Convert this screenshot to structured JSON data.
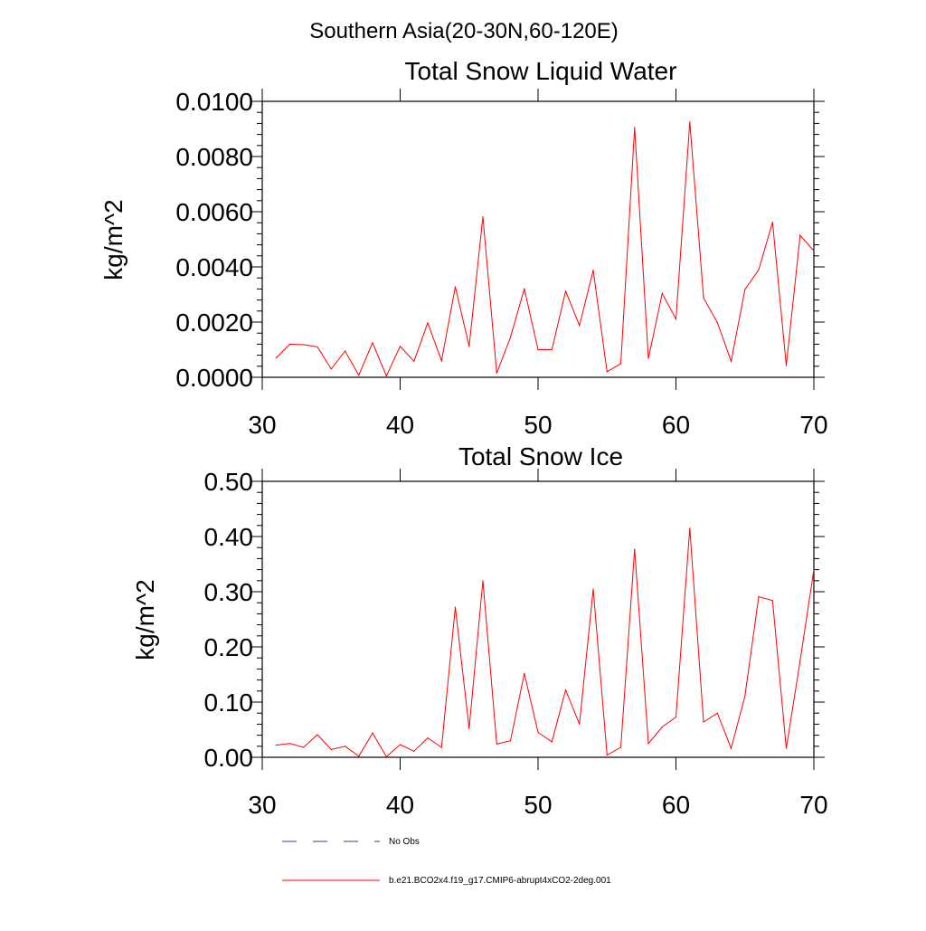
{
  "page_title": "Southern Asia(20-30N,60-120E)",
  "legend": [
    {
      "label": "No Obs",
      "color": "#3a3a8c",
      "dash": true
    },
    {
      "label": "b.e21.BCO2x4.f19_g17.CMIP6-abrupt4xCO2-2deg.001",
      "color": "#ff0000",
      "dash": false
    }
  ],
  "chart_data": [
    {
      "type": "line",
      "title": "Total Snow Liquid Water",
      "xlabel": "",
      "ylabel": "kg/m^2",
      "xlim": [
        30,
        70
      ],
      "ylim": [
        0,
        0.01
      ],
      "xticks": [
        30,
        40,
        50,
        60,
        70
      ],
      "xtick_labels": [
        "30",
        "40",
        "50",
        "60",
        "70"
      ],
      "yticks": [
        0,
        0.002,
        0.004,
        0.006,
        0.008,
        0.01
      ],
      "ytick_labels": [
        "0.0000",
        "0.0020",
        "0.0040",
        "0.0060",
        "0.0080",
        "0.0100"
      ],
      "yminor_step": 0.0004,
      "series": [
        {
          "name": "b.e21.BCO2x4.f19_g17.CMIP6-abrupt4xCO2-2deg.001",
          "color": "#ff0000",
          "x": [
            31,
            32,
            33,
            34,
            35,
            36,
            37,
            38,
            39,
            40,
            41,
            42,
            43,
            44,
            45,
            46,
            47,
            48,
            49,
            50,
            51,
            52,
            53,
            54,
            55,
            56,
            57,
            58,
            59,
            60,
            61,
            62,
            63,
            64,
            65,
            66,
            67,
            68,
            69,
            70
          ],
          "values": [
            0.0007,
            0.0012,
            0.00118,
            0.0011,
            0.0003,
            0.00095,
            8e-05,
            0.00125,
            5e-05,
            0.00112,
            0.00058,
            0.00197,
            0.0006,
            0.00328,
            0.00112,
            0.00582,
            0.00015,
            0.00145,
            0.00321,
            0.001,
            0.001,
            0.00312,
            0.00188,
            0.00388,
            0.0002,
            0.0005,
            0.00905,
            0.00068,
            0.00304,
            0.00211,
            0.00925,
            0.00288,
            0.00198,
            0.00058,
            0.00318,
            0.0039,
            0.00562,
            0.00042,
            0.00514,
            0.00458
          ]
        }
      ]
    },
    {
      "type": "line",
      "title": "Total Snow Ice",
      "xlabel": "",
      "ylabel": "kg/m^2",
      "xlim": [
        30,
        70
      ],
      "ylim": [
        0,
        0.5
      ],
      "xticks": [
        30,
        40,
        50,
        60,
        70
      ],
      "xtick_labels": [
        "30",
        "40",
        "50",
        "60",
        "70"
      ],
      "yticks": [
        0,
        0.1,
        0.2,
        0.3,
        0.4,
        0.5
      ],
      "ytick_labels": [
        "0.00",
        "0.10",
        "0.20",
        "0.30",
        "0.40",
        "0.50"
      ],
      "yminor_step": 0.02,
      "series": [
        {
          "name": "b.e21.BCO2x4.f19_g17.CMIP6-abrupt4xCO2-2deg.001",
          "color": "#ff0000",
          "x": [
            31,
            32,
            33,
            34,
            35,
            36,
            37,
            38,
            39,
            40,
            41,
            42,
            43,
            44,
            45,
            46,
            47,
            48,
            49,
            50,
            51,
            52,
            53,
            54,
            55,
            56,
            57,
            58,
            59,
            60,
            61,
            62,
            63,
            64,
            65,
            66,
            67,
            68,
            69,
            70
          ],
          "values": [
            0.022,
            0.025,
            0.018,
            0.041,
            0.014,
            0.02,
            0.002,
            0.044,
            0.001,
            0.023,
            0.011,
            0.035,
            0.018,
            0.272,
            0.052,
            0.32,
            0.024,
            0.03,
            0.152,
            0.045,
            0.028,
            0.122,
            0.06,
            0.305,
            0.004,
            0.018,
            0.377,
            0.025,
            0.055,
            0.073,
            0.415,
            0.064,
            0.08,
            0.016,
            0.111,
            0.291,
            0.284,
            0.016,
            0.175,
            0.34
          ]
        }
      ]
    }
  ]
}
